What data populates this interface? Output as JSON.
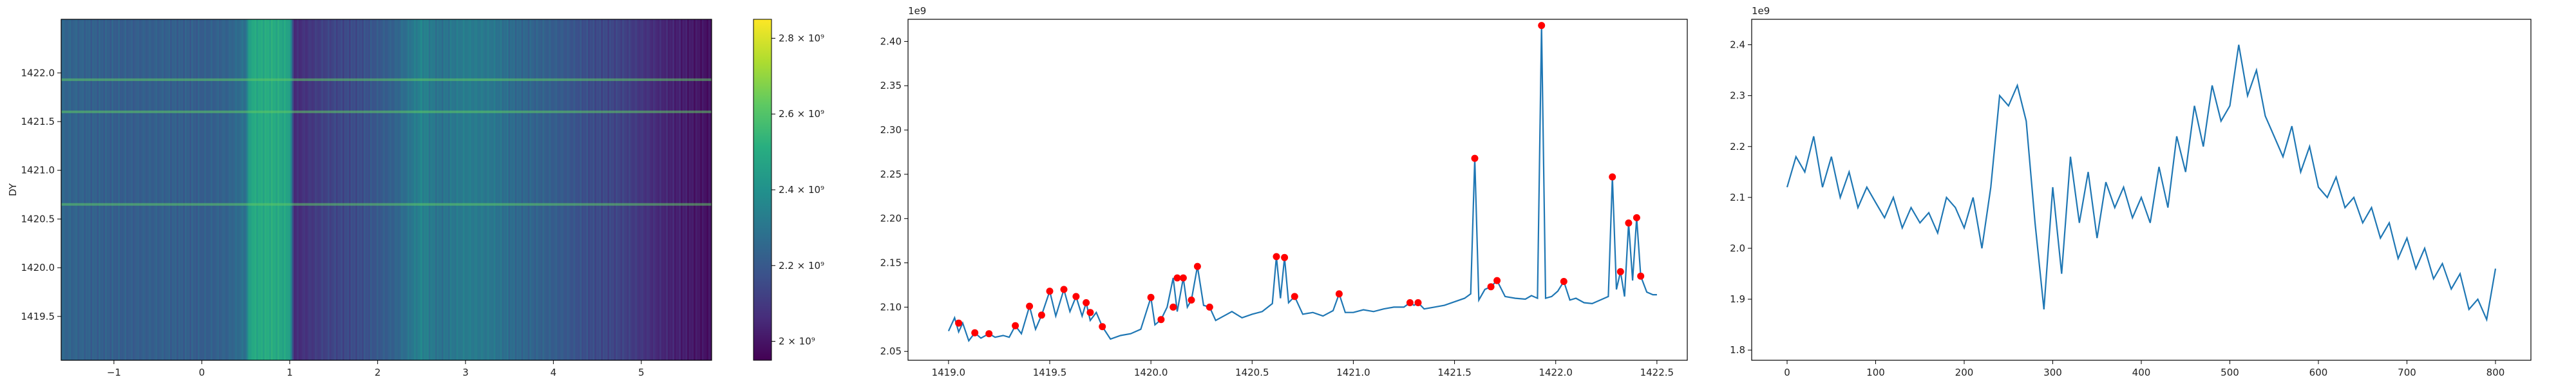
{
  "chart_data": [
    {
      "type": "heatmap",
      "ylabel": "DY",
      "xlim": [
        -1.6,
        5.8
      ],
      "ylim": [
        1419.05,
        1422.55
      ],
      "xticks": [
        -1,
        0,
        1,
        2,
        3,
        4,
        5
      ],
      "xtick_labels": [
        "−1",
        "0",
        "1",
        "2",
        "3",
        "4",
        "5"
      ],
      "yticks": [
        1419.5,
        1420.0,
        1420.5,
        1421.0,
        1421.5,
        1422.0
      ],
      "ytick_labels": [
        "1419.5",
        "1420.0",
        "1420.5",
        "1421.0",
        "1421.5",
        "1422.0"
      ],
      "colormap": "viridis",
      "colorbar": {
        "range": [
          1950000000,
          2850000000
        ],
        "ticks": [
          2000000000,
          2200000000,
          2400000000,
          2600000000,
          2800000000
        ],
        "tick_labels": [
          "2 × 10⁹",
          "2.2 × 10⁹",
          "2.4 × 10⁹",
          "2.6 × 10⁹",
          "2.8 × 10⁹"
        ]
      },
      "column_profile": [
        [
          -1.6,
          0.33
        ],
        [
          -1.2,
          0.31
        ],
        [
          -0.8,
          0.3
        ],
        [
          -0.4,
          0.31
        ],
        [
          0.0,
          0.3
        ],
        [
          0.3,
          0.32
        ],
        [
          0.5,
          0.38
        ],
        [
          0.55,
          0.6
        ],
        [
          0.8,
          0.62
        ],
        [
          1.0,
          0.58
        ],
        [
          1.05,
          0.12
        ],
        [
          1.4,
          0.2
        ],
        [
          1.8,
          0.24
        ],
        [
          2.2,
          0.32
        ],
        [
          2.5,
          0.45
        ],
        [
          2.7,
          0.38
        ],
        [
          3.0,
          0.42
        ],
        [
          3.3,
          0.4
        ],
        [
          3.6,
          0.34
        ],
        [
          4.0,
          0.3
        ],
        [
          4.4,
          0.24
        ],
        [
          4.8,
          0.2
        ],
        [
          5.2,
          0.12
        ],
        [
          5.8,
          0.04
        ]
      ],
      "bright_rows": [
        1421.93,
        1421.6,
        1420.65
      ]
    },
    {
      "type": "line",
      "offset_text": "1e9",
      "xlim": [
        1418.8,
        1422.65
      ],
      "ylim": [
        2.04,
        2.425
      ],
      "xticks": [
        1419.0,
        1419.5,
        1420.0,
        1420.5,
        1421.0,
        1421.5,
        1422.0,
        1422.5
      ],
      "xtick_labels": [
        "1419.0",
        "1419.5",
        "1420.0",
        "1420.5",
        "1421.0",
        "1421.5",
        "1422.0",
        "1422.5"
      ],
      "yticks": [
        2.05,
        2.1,
        2.15,
        2.2,
        2.25,
        2.3,
        2.35,
        2.4
      ],
      "ytick_labels": [
        "2.05",
        "2.10",
        "2.15",
        "2.20",
        "2.25",
        "2.30",
        "2.35",
        "2.40"
      ],
      "line_color": "#1f77b4",
      "peak_color": "#ff0000",
      "series": [
        {
          "x": [
            1419.0,
            1419.03,
            1419.05,
            1419.07,
            1419.1,
            1419.13,
            1419.16,
            1419.2,
            1419.23,
            1419.27,
            1419.3,
            1419.33,
            1419.36,
            1419.4,
            1419.43,
            1419.46,
            1419.5,
            1419.53,
            1419.57,
            1419.6,
            1419.63,
            1419.66,
            1419.68,
            1419.7,
            1419.73,
            1419.76,
            1419.8,
            1419.85,
            1419.9,
            1419.95,
            1420.0,
            1420.02,
            1420.05,
            1420.08,
            1420.11,
            1420.13,
            1420.16,
            1420.18,
            1420.2,
            1420.23,
            1420.26,
            1420.29,
            1420.32,
            1420.36,
            1420.4,
            1420.45,
            1420.5,
            1420.55,
            1420.6,
            1420.62,
            1420.64,
            1420.66,
            1420.68,
            1420.71,
            1420.75,
            1420.8,
            1420.85,
            1420.9,
            1420.93,
            1420.96,
            1421.0,
            1421.05,
            1421.1,
            1421.15,
            1421.2,
            1421.25,
            1421.28,
            1421.3,
            1421.32,
            1421.35,
            1421.4,
            1421.45,
            1421.5,
            1421.55,
            1421.58,
            1421.6,
            1421.62,
            1421.65,
            1421.68,
            1421.71,
            1421.75,
            1421.8,
            1421.85,
            1421.88,
            1421.91,
            1421.93,
            1421.95,
            1421.98,
            1422.01,
            1422.04,
            1422.07,
            1422.1,
            1422.14,
            1422.18,
            1422.22,
            1422.26,
            1422.28,
            1422.3,
            1422.32,
            1422.34,
            1422.36,
            1422.38,
            1422.4,
            1422.42,
            1422.45,
            1422.48,
            1422.5
          ],
          "y": [
            2.073,
            2.088,
            2.072,
            2.082,
            2.062,
            2.071,
            2.065,
            2.07,
            2.066,
            2.068,
            2.066,
            2.079,
            2.07,
            2.101,
            2.075,
            2.091,
            2.118,
            2.09,
            2.12,
            2.095,
            2.112,
            2.09,
            2.105,
            2.085,
            2.094,
            2.078,
            2.064,
            2.068,
            2.07,
            2.075,
            2.111,
            2.08,
            2.086,
            2.1,
            2.133,
            2.095,
            2.133,
            2.1,
            2.108,
            2.146,
            2.102,
            2.1,
            2.085,
            2.09,
            2.095,
            2.088,
            2.092,
            2.095,
            2.104,
            2.157,
            2.11,
            2.156,
            2.105,
            2.112,
            2.092,
            2.094,
            2.09,
            2.096,
            2.115,
            2.094,
            2.094,
            2.097,
            2.095,
            2.098,
            2.1,
            2.1,
            2.105,
            2.102,
            2.105,
            2.098,
            2.1,
            2.102,
            2.106,
            2.11,
            2.115,
            2.268,
            2.108,
            2.12,
            2.123,
            2.13,
            2.112,
            2.11,
            2.109,
            2.113,
            2.11,
            2.418,
            2.11,
            2.112,
            2.118,
            2.129,
            2.108,
            2.11,
            2.105,
            2.104,
            2.108,
            2.112,
            2.247,
            2.12,
            2.14,
            2.112,
            2.195,
            2.13,
            2.201,
            2.135,
            2.117,
            2.114,
            2.114
          ]
        }
      ],
      "peaks": {
        "x": [
          1419.05,
          1419.13,
          1419.2,
          1419.33,
          1419.4,
          1419.46,
          1419.5,
          1419.57,
          1419.63,
          1419.68,
          1419.7,
          1419.76,
          1420.0,
          1420.05,
          1420.11,
          1420.13,
          1420.16,
          1420.2,
          1420.23,
          1420.29,
          1420.62,
          1420.66,
          1420.71,
          1420.93,
          1421.28,
          1421.32,
          1421.6,
          1421.68,
          1421.71,
          1421.93,
          1422.04,
          1422.28,
          1422.32,
          1422.36,
          1422.4,
          1422.42
        ],
        "y": [
          2.082,
          2.071,
          2.07,
          2.079,
          2.101,
          2.091,
          2.118,
          2.12,
          2.112,
          2.105,
          2.094,
          2.078,
          2.111,
          2.086,
          2.1,
          2.133,
          2.133,
          2.108,
          2.146,
          2.1,
          2.157,
          2.156,
          2.112,
          2.115,
          2.105,
          2.105,
          2.268,
          2.123,
          2.13,
          2.418,
          2.129,
          2.247,
          2.14,
          2.195,
          2.201,
          2.135
        ]
      }
    },
    {
      "type": "line",
      "offset_text": "1e9",
      "xlim": [
        -40,
        840
      ],
      "ylim": [
        1.78,
        2.45
      ],
      "xticks": [
        0,
        100,
        200,
        300,
        400,
        500,
        600,
        700,
        800
      ],
      "xtick_labels": [
        "0",
        "100",
        "200",
        "300",
        "400",
        "500",
        "600",
        "700",
        "800"
      ],
      "yticks": [
        1.8,
        1.9,
        2.0,
        2.1,
        2.2,
        2.3,
        2.4
      ],
      "ytick_labels": [
        "1.8",
        "1.9",
        "2.0",
        "2.1",
        "2.2",
        "2.3",
        "2.4"
      ],
      "line_color": "#1f77b4",
      "series": [
        {
          "x": [
            0,
            10,
            20,
            30,
            40,
            50,
            60,
            70,
            80,
            90,
            100,
            110,
            120,
            130,
            140,
            150,
            160,
            170,
            180,
            190,
            200,
            210,
            220,
            230,
            240,
            250,
            260,
            270,
            280,
            290,
            300,
            310,
            320,
            330,
            340,
            350,
            360,
            370,
            380,
            390,
            400,
            410,
            420,
            430,
            440,
            450,
            460,
            470,
            480,
            490,
            500,
            510,
            520,
            530,
            540,
            550,
            560,
            570,
            580,
            590,
            600,
            610,
            620,
            630,
            640,
            650,
            660,
            670,
            680,
            690,
            700,
            710,
            720,
            730,
            740,
            750,
            760,
            770,
            780,
            790,
            800
          ],
          "y": [
            2.12,
            2.18,
            2.15,
            2.22,
            2.12,
            2.18,
            2.1,
            2.15,
            2.08,
            2.12,
            2.09,
            2.06,
            2.1,
            2.04,
            2.08,
            2.05,
            2.07,
            2.03,
            2.1,
            2.08,
            2.04,
            2.1,
            2.0,
            2.12,
            2.3,
            2.28,
            2.32,
            2.25,
            2.05,
            1.88,
            2.12,
            1.95,
            2.18,
            2.05,
            2.15,
            2.02,
            2.13,
            2.08,
            2.12,
            2.06,
            2.1,
            2.05,
            2.16,
            2.08,
            2.22,
            2.15,
            2.28,
            2.2,
            2.32,
            2.25,
            2.28,
            2.4,
            2.3,
            2.35,
            2.26,
            2.22,
            2.18,
            2.24,
            2.15,
            2.2,
            2.12,
            2.1,
            2.14,
            2.08,
            2.1,
            2.05,
            2.08,
            2.02,
            2.05,
            1.98,
            2.02,
            1.96,
            2.0,
            1.94,
            1.97,
            1.92,
            1.95,
            1.88,
            1.9,
            1.86,
            1.96
          ]
        }
      ]
    }
  ]
}
